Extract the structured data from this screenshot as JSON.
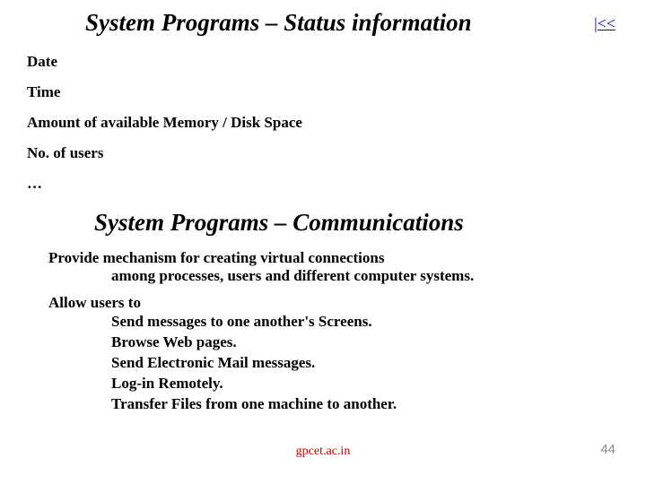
{
  "nav": {
    "back_label": "|<<"
  },
  "section1": {
    "title": "System Programs – Status information",
    "items": [
      "Date",
      "Time",
      "Amount of available Memory / Disk Space",
      "No. of users",
      "…"
    ]
  },
  "section2": {
    "title": "System Programs – Communications",
    "para1_line1": "Provide mechanism for creating virtual connections",
    "para1_line2": "among processes, users and different computer systems.",
    "para2_lead": "Allow users to",
    "para2_items": [
      "Send messages to one another's Screens.",
      "Browse Web pages.",
      "Send Electronic Mail messages.",
      "Log-in Remotely.",
      "Transfer Files from one machine to another."
    ]
  },
  "footer": {
    "center": "gpcet.ac.in",
    "page_number": "44"
  },
  "colors": {
    "text": "#000000",
    "link": "#0000cc",
    "footer_center": "#c00000",
    "footer_page": "#888888",
    "background": "#ffffff"
  }
}
